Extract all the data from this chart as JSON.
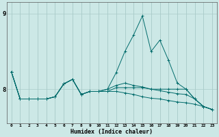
{
  "title": "",
  "xlabel": "Humidex (Indice chaleur)",
  "ylabel": "",
  "bg_color": "#cce8e6",
  "grid_color": "#aaccca",
  "line_color": "#006b6b",
  "xmin": -0.5,
  "xmax": 23.5,
  "ymin": 7.55,
  "ymax": 9.15,
  "yticks": [
    8,
    9
  ],
  "xticks": [
    0,
    1,
    2,
    3,
    4,
    5,
    6,
    7,
    8,
    9,
    10,
    11,
    12,
    13,
    14,
    15,
    16,
    17,
    18,
    19,
    20,
    21,
    22,
    23
  ],
  "series": [
    [
      8.23,
      7.87,
      7.87,
      7.87,
      7.87,
      7.9,
      8.07,
      8.13,
      7.93,
      7.97,
      7.97,
      8.0,
      8.22,
      8.5,
      8.72,
      8.97,
      8.5,
      8.65,
      8.38,
      8.08,
      8.0,
      7.87,
      7.77,
      7.73
    ],
    [
      8.23,
      7.87,
      7.87,
      7.87,
      7.87,
      7.9,
      8.07,
      8.13,
      7.93,
      7.97,
      7.97,
      8.0,
      8.05,
      8.08,
      8.05,
      8.03,
      8.0,
      8.0,
      8.0,
      8.0,
      8.0,
      7.87,
      7.77,
      7.73
    ],
    [
      8.23,
      7.87,
      7.87,
      7.87,
      7.87,
      7.9,
      8.07,
      8.13,
      7.93,
      7.97,
      7.97,
      7.97,
      7.97,
      7.95,
      7.93,
      7.9,
      7.88,
      7.87,
      7.85,
      7.83,
      7.82,
      7.8,
      7.77,
      7.73
    ],
    [
      8.23,
      7.87,
      7.87,
      7.87,
      7.87,
      7.9,
      8.07,
      8.13,
      7.93,
      7.97,
      7.97,
      7.97,
      8.02,
      8.02,
      8.02,
      8.02,
      8.0,
      7.98,
      7.96,
      7.94,
      7.93,
      7.87,
      7.77,
      7.73
    ]
  ]
}
